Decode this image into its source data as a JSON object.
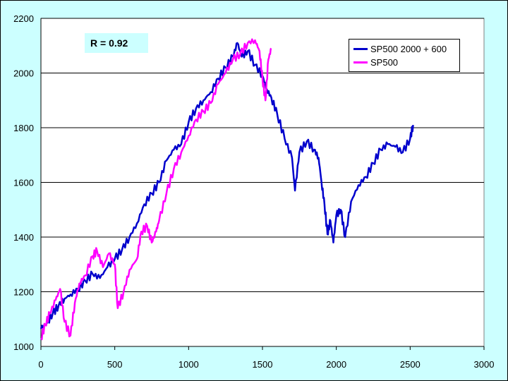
{
  "chart_data": {
    "type": "line",
    "title": "",
    "xlabel": "",
    "ylabel": "",
    "xlim": [
      0,
      3000
    ],
    "ylim": [
      1000,
      2200
    ],
    "xticks": [
      "0",
      "500",
      "1000",
      "1500",
      "2000",
      "2500",
      "3000"
    ],
    "yticks": [
      "1000",
      "1200",
      "1400",
      "1600",
      "1800",
      "2000",
      "2200"
    ],
    "grid": "horizontal",
    "legend_position": "top-right",
    "annotation": "R = 0.92",
    "series": [
      {
        "name": "SP500 2000 + 600",
        "color": "#0000cc",
        "points": [
          [
            0,
            1065
          ],
          [
            40,
            1085
          ],
          [
            80,
            1120
          ],
          [
            120,
            1150
          ],
          [
            160,
            1175
          ],
          [
            200,
            1190
          ],
          [
            250,
            1210
          ],
          [
            300,
            1240
          ],
          [
            350,
            1265
          ],
          [
            400,
            1250
          ],
          [
            450,
            1290
          ],
          [
            500,
            1320
          ],
          [
            550,
            1355
          ],
          [
            600,
            1400
          ],
          [
            650,
            1450
          ],
          [
            700,
            1520
          ],
          [
            750,
            1560
          ],
          [
            800,
            1600
          ],
          [
            850,
            1680
          ],
          [
            900,
            1720
          ],
          [
            950,
            1740
          ],
          [
            1000,
            1820
          ],
          [
            1050,
            1870
          ],
          [
            1100,
            1900
          ],
          [
            1150,
            1930
          ],
          [
            1200,
            1980
          ],
          [
            1250,
            2020
          ],
          [
            1300,
            2060
          ],
          [
            1330,
            2110
          ],
          [
            1360,
            2060
          ],
          [
            1400,
            2080
          ],
          [
            1450,
            2030
          ],
          [
            1500,
            1990
          ],
          [
            1530,
            1940
          ],
          [
            1560,
            1910
          ],
          [
            1600,
            1850
          ],
          [
            1650,
            1760
          ],
          [
            1700,
            1690
          ],
          [
            1720,
            1570
          ],
          [
            1750,
            1710
          ],
          [
            1800,
            1750
          ],
          [
            1850,
            1720
          ],
          [
            1880,
            1690
          ],
          [
            1900,
            1600
          ],
          [
            1920,
            1520
          ],
          [
            1940,
            1410
          ],
          [
            1960,
            1460
          ],
          [
            1980,
            1380
          ],
          [
            2000,
            1480
          ],
          [
            2030,
            1500
          ],
          [
            2060,
            1400
          ],
          [
            2100,
            1530
          ],
          [
            2150,
            1590
          ],
          [
            2200,
            1620
          ],
          [
            2250,
            1670
          ],
          [
            2300,
            1720
          ],
          [
            2350,
            1740
          ],
          [
            2400,
            1730
          ],
          [
            2450,
            1710
          ],
          [
            2500,
            1760
          ],
          [
            2520,
            1810
          ]
        ]
      },
      {
        "name": "SP500",
        "color": "#ff00ff",
        "points": [
          [
            0,
            1030
          ],
          [
            30,
            1080
          ],
          [
            60,
            1120
          ],
          [
            100,
            1170
          ],
          [
            130,
            1210
          ],
          [
            160,
            1090
          ],
          [
            200,
            1040
          ],
          [
            230,
            1160
          ],
          [
            260,
            1230
          ],
          [
            300,
            1260
          ],
          [
            350,
            1330
          ],
          [
            380,
            1350
          ],
          [
            420,
            1290
          ],
          [
            460,
            1340
          ],
          [
            500,
            1300
          ],
          [
            520,
            1140
          ],
          [
            560,
            1200
          ],
          [
            600,
            1280
          ],
          [
            650,
            1320
          ],
          [
            680,
            1420
          ],
          [
            720,
            1440
          ],
          [
            750,
            1380
          ],
          [
            780,
            1420
          ],
          [
            800,
            1460
          ],
          [
            850,
            1560
          ],
          [
            900,
            1650
          ],
          [
            950,
            1710
          ],
          [
            1000,
            1770
          ],
          [
            1050,
            1830
          ],
          [
            1100,
            1860
          ],
          [
            1150,
            1890
          ],
          [
            1200,
            1960
          ],
          [
            1250,
            2000
          ],
          [
            1300,
            2050
          ],
          [
            1350,
            2070
          ],
          [
            1400,
            2110
          ],
          [
            1450,
            2120
          ],
          [
            1480,
            2080
          ],
          [
            1500,
            1980
          ],
          [
            1520,
            1900
          ],
          [
            1540,
            2050
          ],
          [
            1560,
            2090
          ]
        ]
      }
    ]
  }
}
